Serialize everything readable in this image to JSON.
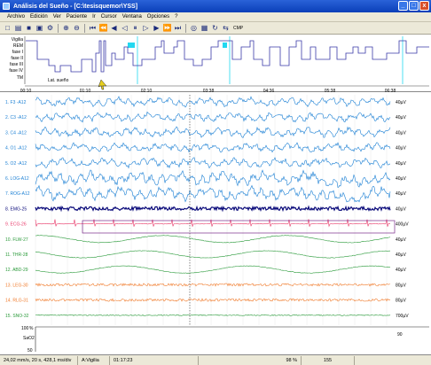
{
  "window": {
    "title": "Análisis del Sueño - [C:\\tesisquemor\\YSS]",
    "controls": [
      "_",
      "□",
      "x"
    ]
  },
  "menu": [
    "Archivo",
    "Edición",
    "Ver",
    "Paciente",
    "Ir",
    "Cursor",
    "Ventana",
    "Opciones",
    "?"
  ],
  "toolbar": {
    "icons": [
      "new-icon",
      "open-icon",
      "save-icon",
      "print-icon",
      "settings-icon",
      "zoom-in-icon",
      "zoom-out-icon",
      "first-icon",
      "prev-page-icon",
      "rewind-icon",
      "back-icon",
      "pause-icon",
      "forward-icon",
      "fast-forward-icon",
      "next-page-icon",
      "last-icon",
      "binoculars-icon",
      "grid-icon",
      "cycle-icon",
      "compare-icon"
    ],
    "label": "CMP"
  },
  "hypnogram": {
    "stage_labels": [
      "Vigilia",
      "REM",
      "fase I",
      "fase II",
      "fase III",
      "fase IV",
      "TM"
    ],
    "latency_label": "Lat. sueño",
    "time_ticks": [
      "00:10",
      "01:10",
      "02:10",
      "03:38",
      "04:36",
      "05:38",
      "06:38"
    ]
  },
  "channels": [
    {
      "label": "1. F3 -A12",
      "unit": "40µV",
      "color": "#1a7fd4"
    },
    {
      "label": "2. C3 -A12",
      "unit": "40µV",
      "color": "#1a7fd4"
    },
    {
      "label": "3. C4 -A12",
      "unit": "40µV",
      "color": "#1a7fd4"
    },
    {
      "label": "4. O1 -A12",
      "unit": "40µV",
      "color": "#1a7fd4"
    },
    {
      "label": "5. O2 -A12",
      "unit": "40µV",
      "color": "#1a7fd4"
    },
    {
      "label": "6. LOG-A12",
      "unit": "40µV",
      "color": "#1a7fd4"
    },
    {
      "label": "7. ROG-A12",
      "unit": "40µV",
      "color": "#1a7fd4"
    },
    {
      "label": "8. EMG-25",
      "unit": "40µV",
      "color": "#0a0a7a"
    },
    {
      "label": "9. ECG-26",
      "unit": "400µV",
      "color": "#e83a6a"
    },
    {
      "label": "10. FLW-27",
      "unit": "40µV",
      "color": "#2a9a3a"
    },
    {
      "label": "11. THR-28",
      "unit": "40µV",
      "color": "#2a9a3a"
    },
    {
      "label": "12. ABD-29",
      "unit": "40µV",
      "color": "#2a9a3a"
    },
    {
      "label": "13. LEG-30",
      "unit": "80µV",
      "color": "#f07a2a"
    },
    {
      "label": "14. RLG-31",
      "unit": "80µV",
      "color": "#f07a2a"
    },
    {
      "label": "15. SNO-32",
      "unit": "700µV",
      "color": "#2a9a3a"
    }
  ],
  "sao2": {
    "label": "SaO2",
    "pct_label": "%",
    "top": "100",
    "bottom": "50",
    "marker": "90"
  },
  "status": [
    "24,02 mm/s, 20 s, 428,1 ms/div",
    "A:Vigilia",
    "01:17:23",
    "98 %",
    "155"
  ]
}
